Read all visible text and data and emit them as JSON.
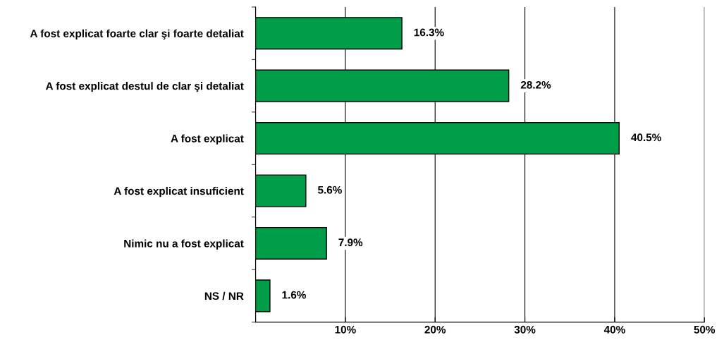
{
  "chart_data": {
    "type": "bar",
    "orientation": "horizontal",
    "categories": [
      "A fost explicat foarte clar şi foarte detaliat",
      "A fost explicat destul de clar şi detaliat",
      "A fost explicat",
      "A fost explicat insuficient",
      "Nimic nu a fost explicat",
      "NS / NR"
    ],
    "values": [
      16.3,
      28.2,
      40.5,
      5.6,
      7.9,
      1.6
    ],
    "value_labels": [
      "16.3%",
      "28.2%",
      "40.5%",
      "5.6%",
      "7.9%",
      "1.6%"
    ],
    "color": "#009e49",
    "xlim": [
      0,
      50
    ],
    "xticks": [
      {
        "value": 0,
        "label": null
      },
      {
        "value": 10,
        "label": "10%"
      },
      {
        "value": 20,
        "label": "20%"
      },
      {
        "value": 30,
        "label": "30%"
      },
      {
        "value": 40,
        "label": "40%"
      },
      {
        "value": 50,
        "label": "50%"
      }
    ],
    "grid": "x",
    "legend": false
  }
}
